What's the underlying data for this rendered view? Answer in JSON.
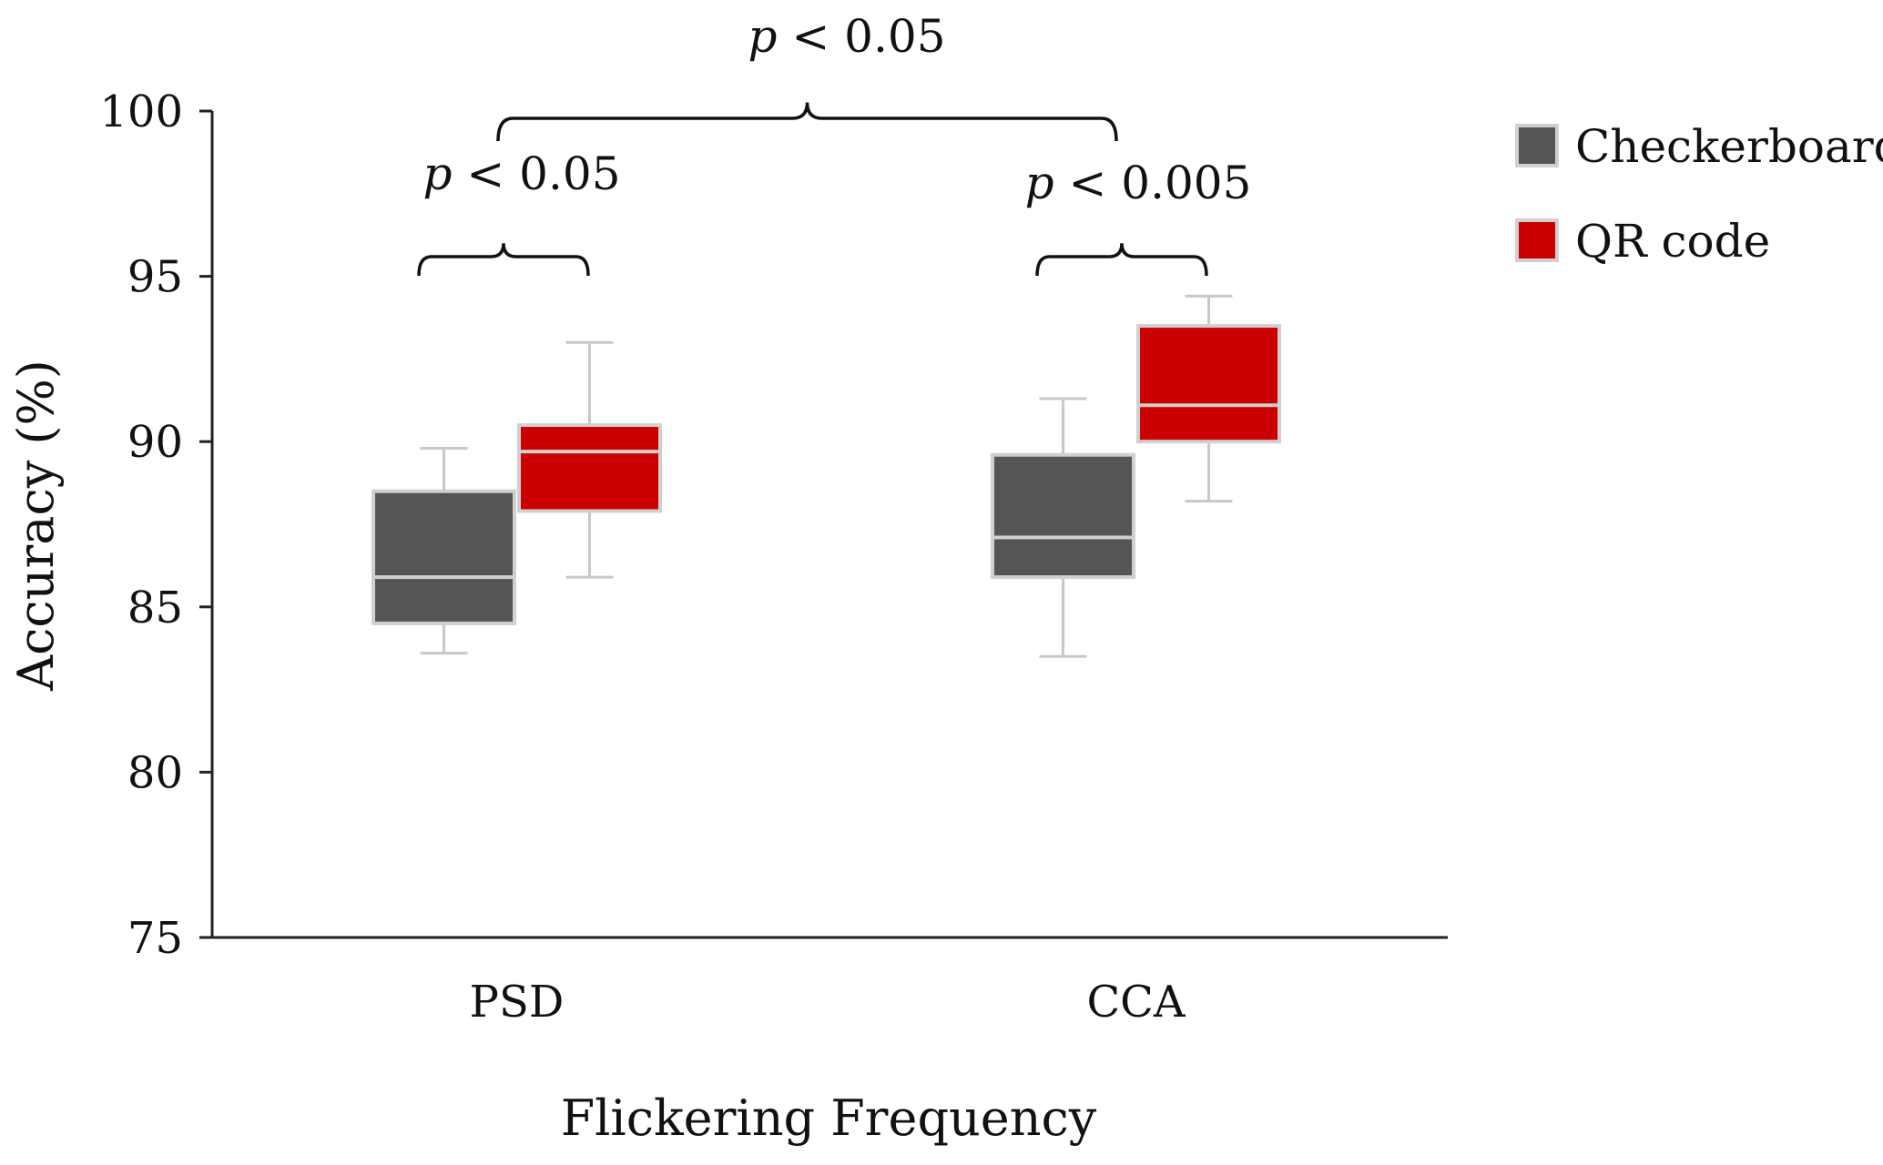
{
  "chart_data": {
    "type": "boxplot",
    "title": "",
    "xlabel": "Flickering Frequency",
    "ylabel": "Accuracy (%)",
    "ylim": [
      75,
      100
    ],
    "yticks": [
      "75",
      "80",
      "85",
      "90",
      "95",
      "100"
    ],
    "categories": [
      "PSD",
      "CCA"
    ],
    "series": [
      {
        "name": "Checkerboard",
        "color": "#555555",
        "boxes": [
          {
            "category": "PSD",
            "min": 83.6,
            "q1": 84.5,
            "median": 85.9,
            "q3": 88.5,
            "max": 89.8
          },
          {
            "category": "CCA",
            "min": 83.5,
            "q1": 85.9,
            "median": 87.1,
            "q3": 89.6,
            "max": 91.3
          }
        ]
      },
      {
        "name": "QR code",
        "color": "#cc0000",
        "boxes": [
          {
            "category": "PSD",
            "min": 85.9,
            "q1": 87.9,
            "median": 89.7,
            "q3": 90.5,
            "max": 93.0
          },
          {
            "category": "CCA",
            "min": 88.2,
            "q1": 90.0,
            "median": 91.1,
            "q3": 93.5,
            "max": 94.4
          }
        ]
      }
    ],
    "annotations": [
      {
        "id": "psd",
        "p": "p",
        "text": "< 0.05",
        "between": [
          "PSD Checkerboard",
          "PSD QR code"
        ]
      },
      {
        "id": "cca",
        "p": "p",
        "text": "< 0.005",
        "between": [
          "CCA Checkerboard",
          "CCA QR code"
        ]
      },
      {
        "id": "top",
        "p": "p",
        "text": "< 0.05",
        "between": [
          "PSD",
          "CCA"
        ]
      }
    ],
    "legend_position": "top-right",
    "box_edge_color": "#d0d0d0",
    "whisker_color": "#c8c8c8",
    "axis_color": "#222222"
  }
}
